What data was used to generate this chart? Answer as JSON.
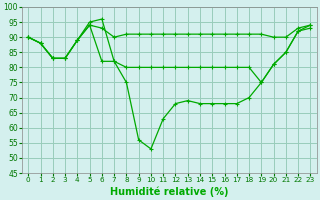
{
  "xlabel": "Humidité relative (%)",
  "bg_color": "#d4f0ee",
  "grid_color": "#99ccbb",
  "line_color": "#00aa00",
  "ylim": [
    45,
    100
  ],
  "yticks": [
    45,
    50,
    55,
    60,
    65,
    70,
    75,
    80,
    85,
    90,
    95,
    100
  ],
  "xlim": [
    -0.5,
    23.5
  ],
  "xticks": [
    0,
    1,
    2,
    3,
    4,
    5,
    6,
    7,
    8,
    9,
    10,
    11,
    12,
    13,
    14,
    15,
    16,
    17,
    18,
    19,
    20,
    21,
    22,
    23
  ],
  "line1": [
    90,
    88,
    83,
    83,
    89,
    95,
    96,
    82,
    75,
    56,
    53,
    63,
    68,
    69,
    68,
    68,
    68,
    68,
    70,
    75,
    81,
    85,
    92,
    93
  ],
  "line2": [
    90,
    88,
    83,
    83,
    89,
    94,
    82,
    82,
    80,
    80,
    80,
    80,
    80,
    80,
    80,
    80,
    80,
    80,
    80,
    75,
    81,
    85,
    92,
    94
  ],
  "line3": [
    90,
    88,
    83,
    83,
    89,
    94,
    93,
    90,
    91,
    91,
    91,
    91,
    91,
    91,
    91,
    91,
    91,
    91,
    91,
    91,
    90,
    90,
    93,
    94
  ]
}
